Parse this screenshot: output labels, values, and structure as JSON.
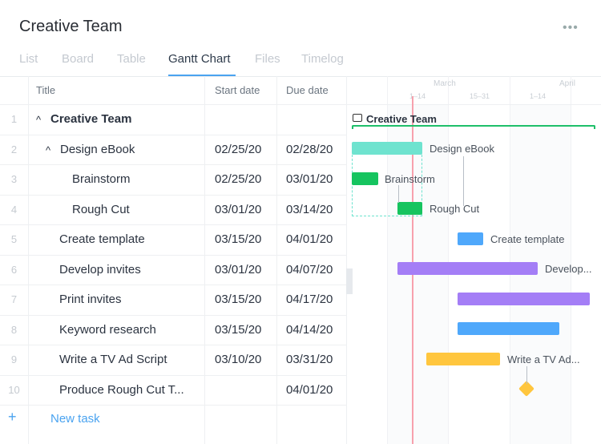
{
  "header": {
    "title": "Creative Team",
    "more_icon": "ellipsis-icon",
    "more": "•••"
  },
  "tabs": [
    {
      "label": "List"
    },
    {
      "label": "Board"
    },
    {
      "label": "Table"
    },
    {
      "label": "Gantt Chart",
      "active": true
    },
    {
      "label": "Files"
    },
    {
      "label": "Timelog"
    }
  ],
  "table": {
    "columns": [
      "Title",
      "Start date",
      "Due date"
    ],
    "rows": [
      {
        "num": "1",
        "title": "Creative Team",
        "start": "",
        "due": "",
        "expander": "^",
        "bold": true
      },
      {
        "num": "2",
        "title": "Design eBook",
        "start": "02/25/20",
        "due": "02/28/20",
        "expander": "^"
      },
      {
        "num": "3",
        "title": "Brainstorm",
        "start": "02/25/20",
        "due": "03/01/20"
      },
      {
        "num": "4",
        "title": "Rough Cut",
        "start": "03/01/20",
        "due": "03/14/20"
      },
      {
        "num": "5",
        "title": "Create template",
        "start": "03/15/20",
        "due": "04/01/20"
      },
      {
        "num": "6",
        "title": "Develop invites",
        "start": "03/01/20",
        "due": "04/07/20"
      },
      {
        "num": "7",
        "title": "Print invites",
        "start": "03/15/20",
        "due": "04/17/20"
      },
      {
        "num": "8",
        "title": "Keyword research",
        "start": "03/15/20",
        "due": "04/14/20"
      },
      {
        "num": "9",
        "title": "Write a TV Ad Script",
        "start": "03/10/20",
        "due": "03/31/20"
      },
      {
        "num": "10",
        "title": "Produce Rough Cut T...",
        "start": "",
        "due": "04/01/20"
      }
    ],
    "new_task": {
      "icon": "+",
      "label": "New task"
    }
  },
  "gantt": {
    "months": [
      "March",
      "April"
    ],
    "periods": [
      "1–14",
      "15–31",
      "1–14"
    ],
    "group": {
      "label": "Creative Team",
      "icon": "folder-icon",
      "color": "#1fbf6a"
    },
    "bars": [
      {
        "task": "Design eBook",
        "label": "Design eBook",
        "color": "#6fe3cf"
      },
      {
        "task": "Brainstorm",
        "label": "Brainstorm",
        "color": "#16c45f"
      },
      {
        "task": "Rough Cut",
        "label": "Rough Cut",
        "color": "#16c45f"
      },
      {
        "task": "Create template",
        "label": "Create template",
        "color": "#4fa8fb"
      },
      {
        "task": "Develop invites",
        "label": "Develop...",
        "color": "#a47ef6"
      },
      {
        "task": "Print invites",
        "label": "",
        "color": "#a47ef6"
      },
      {
        "task": "Keyword research",
        "label": "",
        "color": "#4fa8fb"
      },
      {
        "task": "Write a TV Ad Script",
        "label": "Write a TV Ad...",
        "color": "#ffc63e"
      },
      {
        "task": "Produce Rough Cut",
        "label": "",
        "color": "#ffc63e",
        "milestone": true
      }
    ],
    "today_color": "#f7a1ad"
  }
}
